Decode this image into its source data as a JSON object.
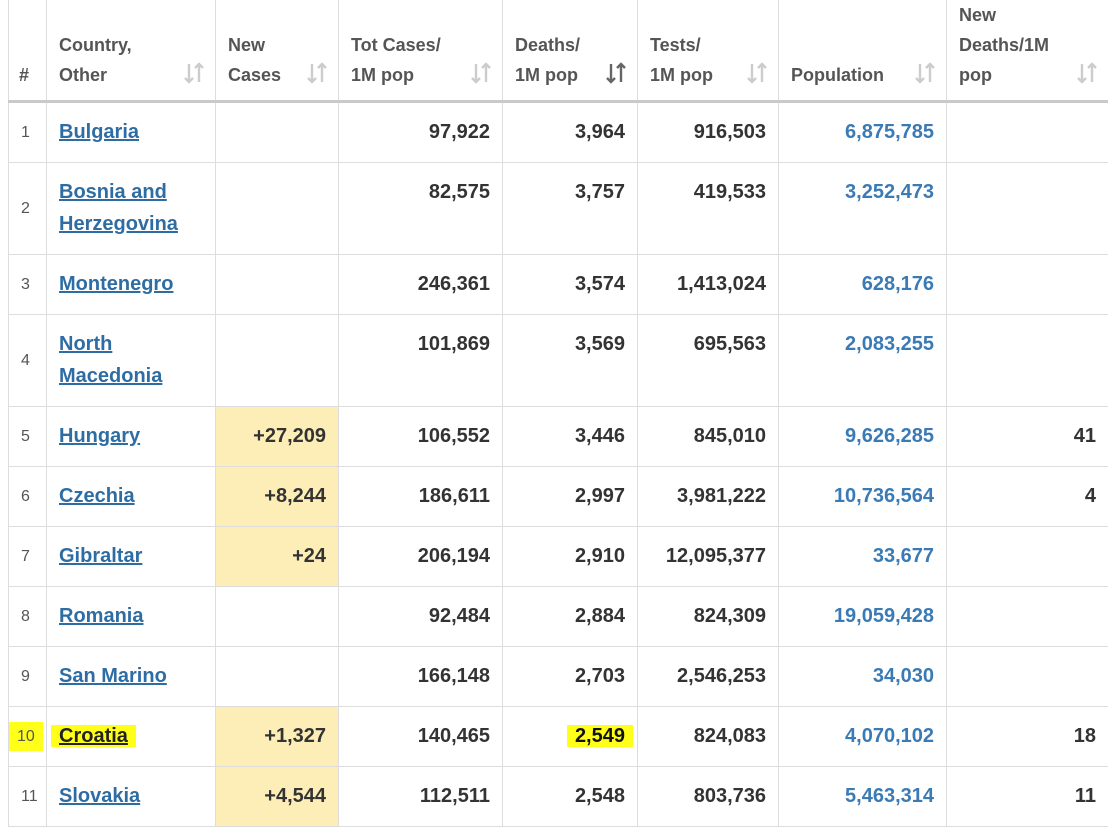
{
  "table": {
    "header": [
      "#",
      "Country,\nOther",
      "New\nCases",
      "Tot Cases/\n1M pop",
      "Deaths/\n1M pop",
      "Tests/\n1M pop",
      "Population",
      "New\nDeaths/1M\npop"
    ],
    "rows": [
      [
        "1",
        "Bulgaria",
        null,
        "97,922",
        "3,964",
        "916,503",
        "6,875,785",
        null
      ],
      [
        "2",
        "Bosnia and Herzegovina",
        null,
        "82,575",
        "3,757",
        "419,533",
        "3,252,473",
        null
      ],
      [
        "3",
        "Montenegro",
        null,
        "246,361",
        "3,574",
        "1,413,024",
        "628,176",
        null
      ],
      [
        "4",
        "North Macedonia",
        null,
        "101,869",
        "3,569",
        "695,563",
        "2,083,255",
        null
      ],
      [
        "5",
        "Hungary",
        "+27,209",
        "106,552",
        "3,446",
        "845,010",
        "9,626,285",
        "41"
      ],
      [
        "6",
        "Czechia",
        "+8,244",
        "186,611",
        "2,997",
        "3,981,222",
        "10,736,564",
        "4"
      ],
      [
        "7",
        "Gibraltar",
        "+24",
        "206,194",
        "2,910",
        "12,095,377",
        "33,677",
        null
      ],
      [
        "8",
        "Romania",
        null,
        "92,484",
        "2,884",
        "824,309",
        "19,059,428",
        null
      ],
      [
        "9",
        "San Marino",
        null,
        "166,148",
        "2,703",
        "2,546,253",
        "34,030",
        null
      ],
      [
        "10",
        "Croatia",
        "+1,327",
        "140,465",
        "2,549",
        "824,083",
        "4,070,102",
        "18"
      ],
      [
        "11",
        "Slovakia",
        "+4,544",
        "112,511",
        "2,548",
        "803,736",
        "5,463,314",
        "11"
      ]
    ]
  }
}
